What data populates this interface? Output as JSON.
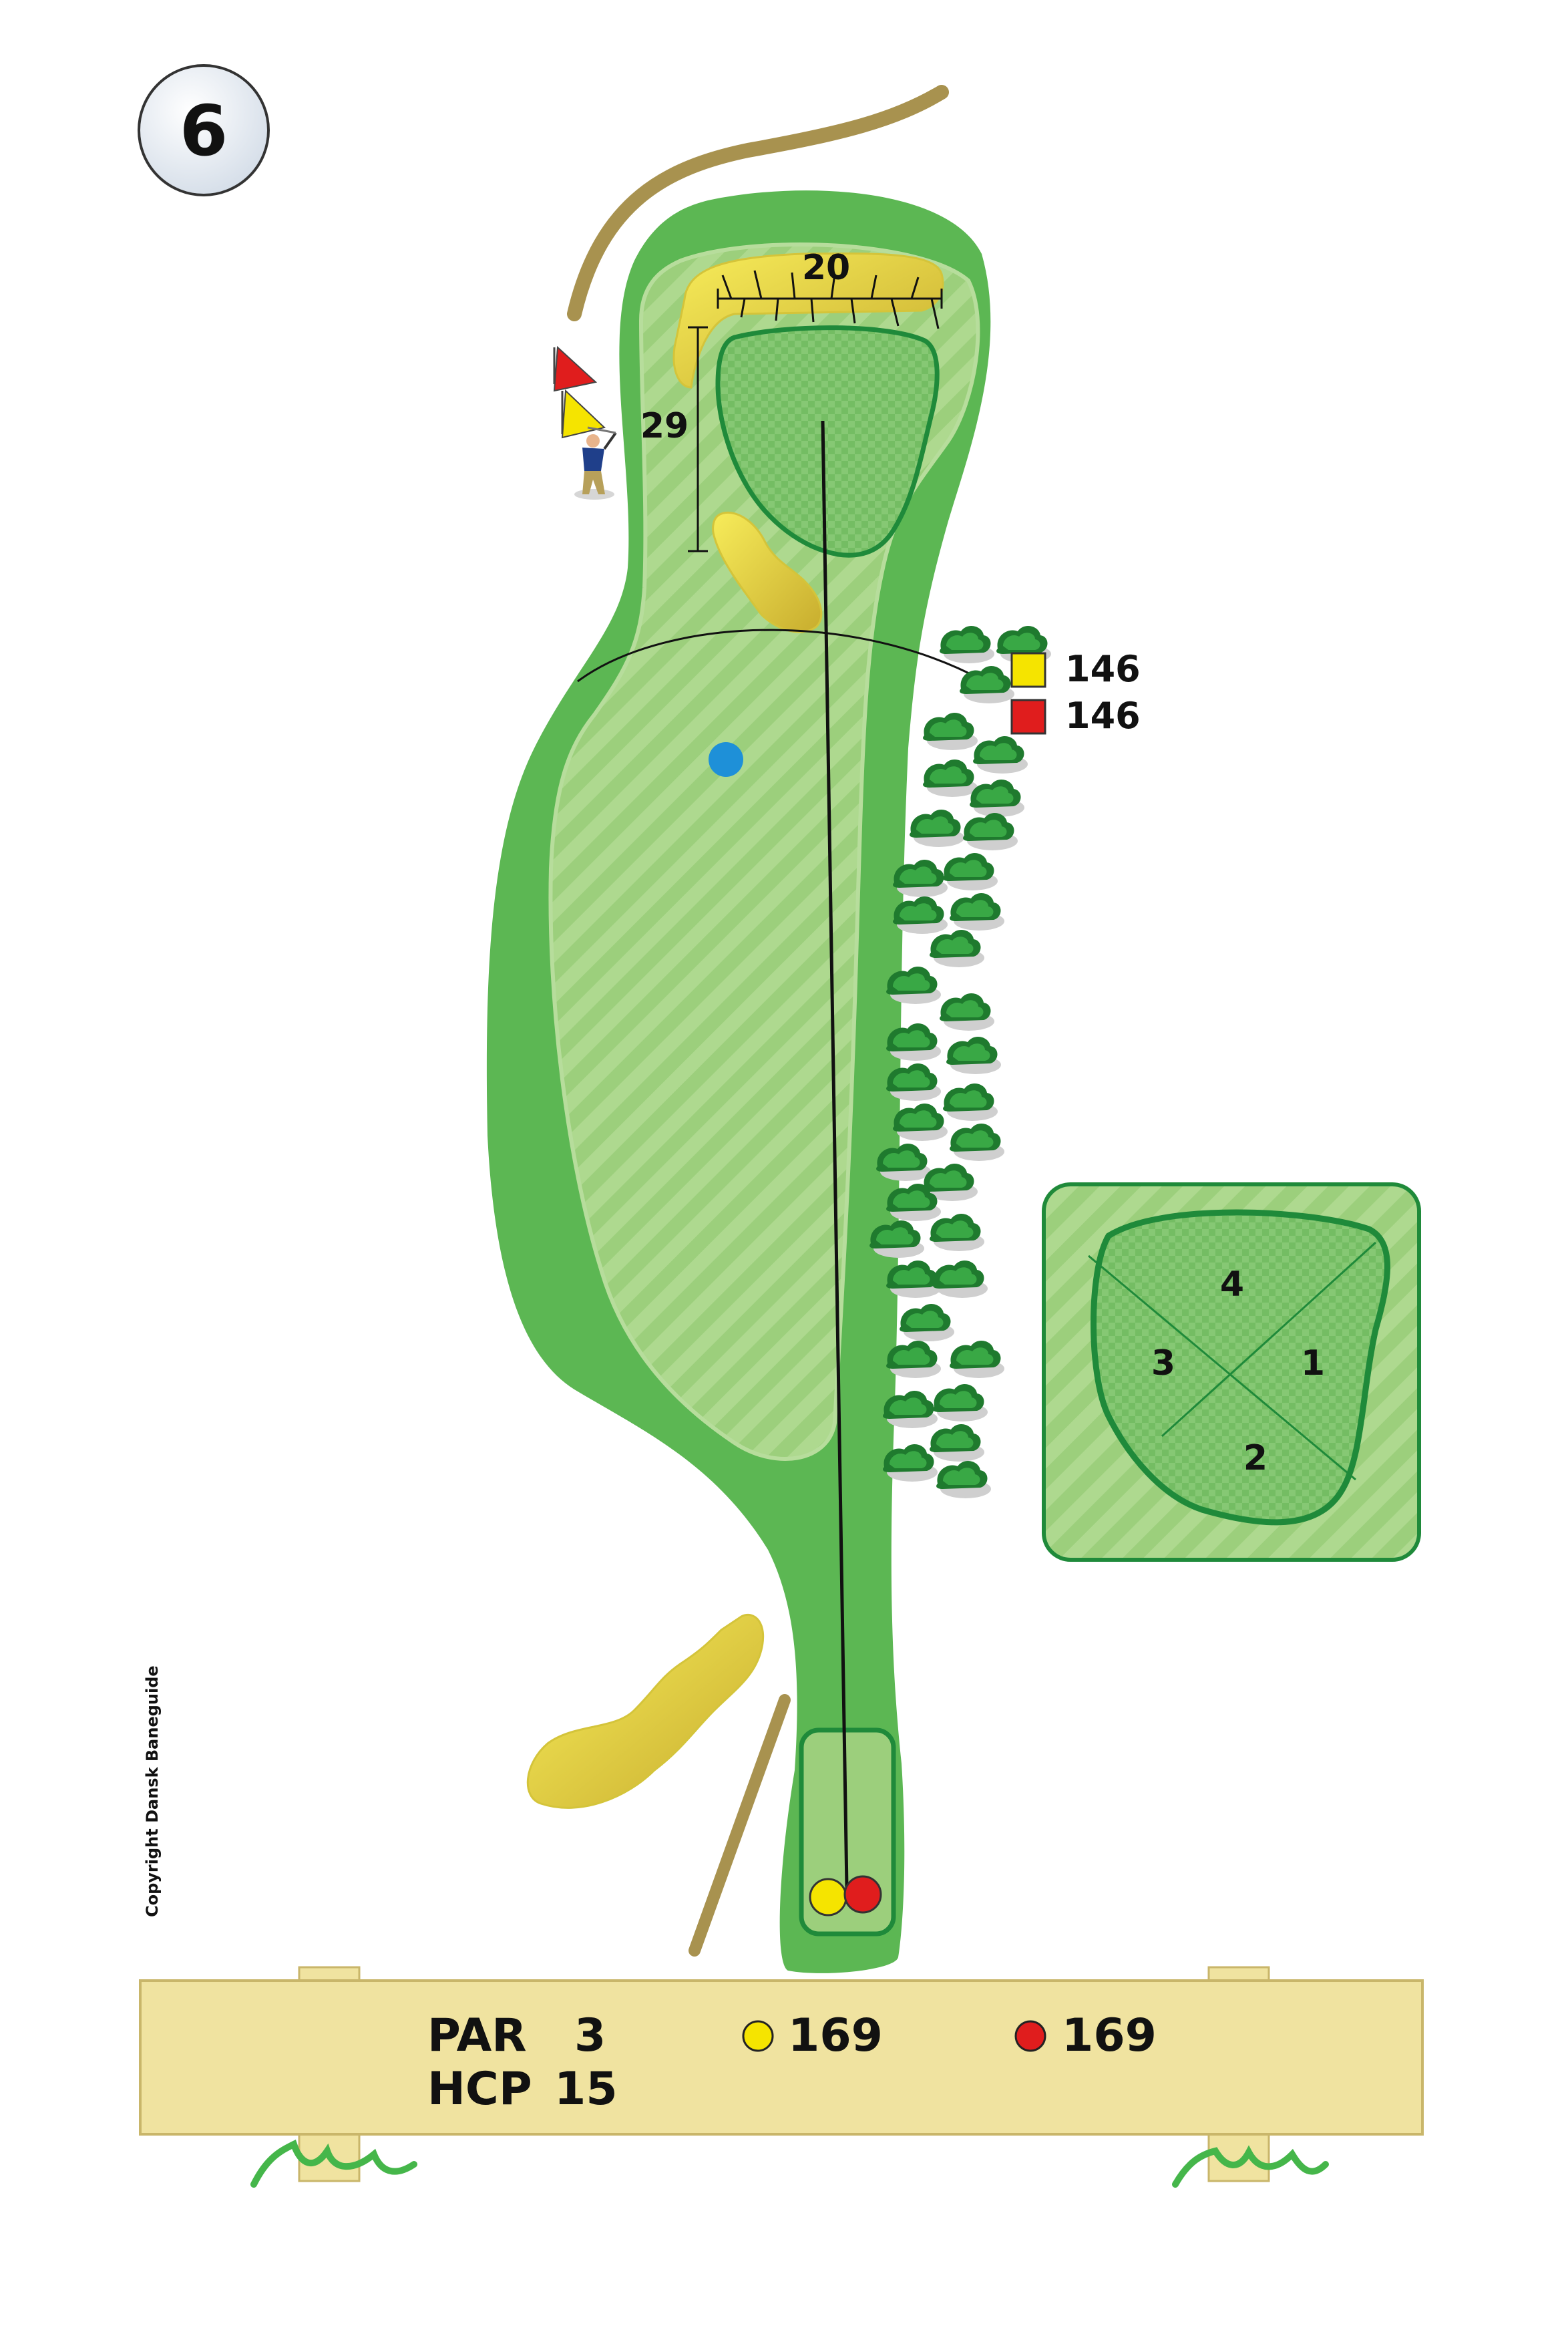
{
  "hole": {
    "number": "6",
    "par_label": "PAR",
    "par": "3",
    "hcp_label": "HCP",
    "hcp": "15"
  },
  "tees": [
    {
      "color": "#f5e400",
      "length": "169",
      "marker_distance": "146"
    },
    {
      "color": "#e01d1d",
      "length": "169",
      "marker_distance": "146"
    }
  ],
  "green": {
    "depth": "29",
    "width": "20",
    "pin_positions": [
      "4",
      "1",
      "2",
      "3"
    ]
  },
  "copyright": "Copyright Dansk Baneguide",
  "colors": {
    "rough": "#5cb753",
    "fairway": "#9ccf7c",
    "green": "#7cc26d",
    "green_border": "#1f8a3a",
    "sand": "#f2e44a",
    "path": "#a8924f",
    "tree": "#2a8d34",
    "water": "#1e90d8",
    "sign": "#f0e3a0"
  },
  "icons": [
    "hole-number-badge",
    "red-tee-flag-icon",
    "yellow-tee-flag-icon",
    "golfer-icon",
    "water-marker-icon",
    "tree-icon"
  ]
}
